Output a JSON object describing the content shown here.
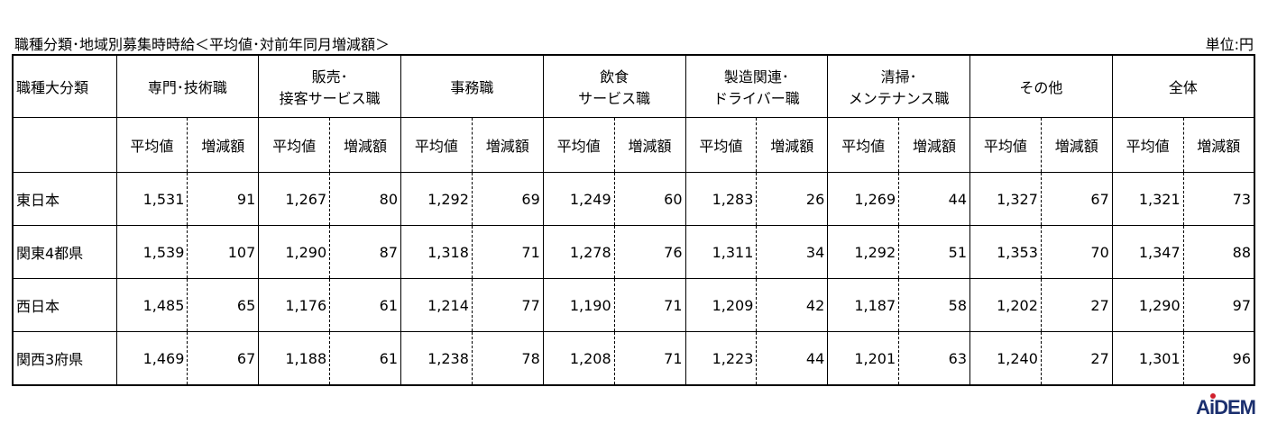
{
  "title": "職種分類･地域別募集時時給＜平均値･対前年同月増減額＞",
  "unit": "単位:円",
  "header": {
    "first": "職種大分類",
    "groups": [
      "専門･技術職",
      "販売･\n接客サービス職",
      "事務職",
      "飲食\nサービス職",
      "製造関連･\nドライバー職",
      "清掃･\nメンテナンス職",
      "その他",
      "全体"
    ],
    "avg": "平均値",
    "diff": "増減額"
  },
  "rows": [
    {
      "label": "東日本",
      "values": [
        "1,531",
        "91",
        "1,267",
        "80",
        "1,292",
        "69",
        "1,249",
        "60",
        "1,283",
        "26",
        "1,269",
        "44",
        "1,327",
        "67",
        "1,321",
        "73"
      ]
    },
    {
      "label": "関東4都県",
      "values": [
        "1,539",
        "107",
        "1,290",
        "87",
        "1,318",
        "71",
        "1,278",
        "76",
        "1,311",
        "34",
        "1,292",
        "51",
        "1,353",
        "70",
        "1,347",
        "88"
      ]
    },
    {
      "label": "西日本",
      "values": [
        "1,485",
        "65",
        "1,176",
        "61",
        "1,214",
        "77",
        "1,190",
        "71",
        "1,209",
        "42",
        "1,187",
        "58",
        "1,202",
        "27",
        "1,290",
        "97"
      ]
    },
    {
      "label": "関西3府県",
      "values": [
        "1,469",
        "67",
        "1,188",
        "61",
        "1,238",
        "78",
        "1,208",
        "71",
        "1,223",
        "44",
        "1,201",
        "63",
        "1,240",
        "27",
        "1,301",
        "96"
      ]
    }
  ],
  "logo": "AiDEM",
  "colors": {
    "logo": "#1b2f6e",
    "logo_dot": "#d0202c"
  }
}
